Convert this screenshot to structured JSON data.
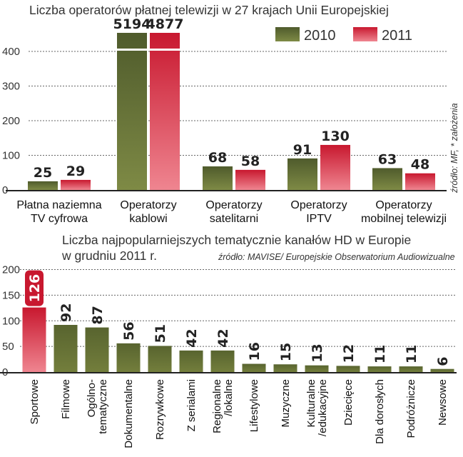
{
  "chart_data": [
    {
      "type": "bar",
      "title": "Liczba operatorów płatnej telewizji w 27 krajach Unii Europejskiej",
      "source": "źródło: MF, * założenia",
      "categories": [
        "Płatna naziemna\nTV cyfrowa",
        "Operatorzy\nkablowi",
        "Operatorzy\nsatelitarni",
        "Operatorzy\nIPTV",
        "Operatorzy\nmobilnej telewizji"
      ],
      "series": [
        {
          "name": "2010",
          "values": [
            25,
            5194,
            68,
            91,
            63
          ],
          "value_labels": [
            "25",
            "5194",
            "68",
            "91",
            "63"
          ]
        },
        {
          "name": "2011",
          "values": [
            29,
            4877,
            58,
            130,
            48
          ],
          "value_labels": [
            "29",
            "4877",
            "58",
            "130",
            "48"
          ]
        }
      ],
      "ylim": [
        0,
        470
      ],
      "yticks": [
        "0",
        "100",
        "200",
        "300",
        "400"
      ],
      "axis_break": true,
      "legend_position": "top-right",
      "grid": true
    },
    {
      "type": "bar",
      "title_lines": [
        "Liczba najpopularniejszych tematycznie kanałów HD w Europie",
        "w grudniu 2011 r."
      ],
      "source": "źródło: MAVISE/ Europejskie Obserwatorium Audiowizualne",
      "categories": [
        "Sportowe",
        "Filmowe",
        "Ogólno-\ntematyczne",
        "Dokumentalne",
        "Rozrywkowe",
        "Z serialami",
        "Regionalne\n/lokalne",
        "Lifestylowe",
        "Muzyczne",
        "Kulturalne\n/edukacyjne",
        "Dziecięce",
        "Dla dorosłych",
        "Podróżnicze",
        "Newsowe"
      ],
      "values": [
        126,
        92,
        87,
        56,
        51,
        42,
        42,
        16,
        15,
        13,
        12,
        11,
        11,
        6
      ],
      "value_labels": [
        "126",
        "92",
        "87",
        "56",
        "51",
        "42",
        "42",
        "16",
        "15",
        "13",
        "12",
        "11",
        "11",
        "6"
      ],
      "ylim": [
        0,
        200
      ],
      "yticks": [
        "0",
        "50",
        "100",
        "150",
        "200"
      ],
      "grid": true
    }
  ],
  "colors": {
    "green_dark": "#4f5b2c",
    "green_light": "#76813f",
    "red_dark": "#c8182f",
    "red_light": "#ec7a88",
    "grid": "#666666",
    "axis": "#222222"
  }
}
